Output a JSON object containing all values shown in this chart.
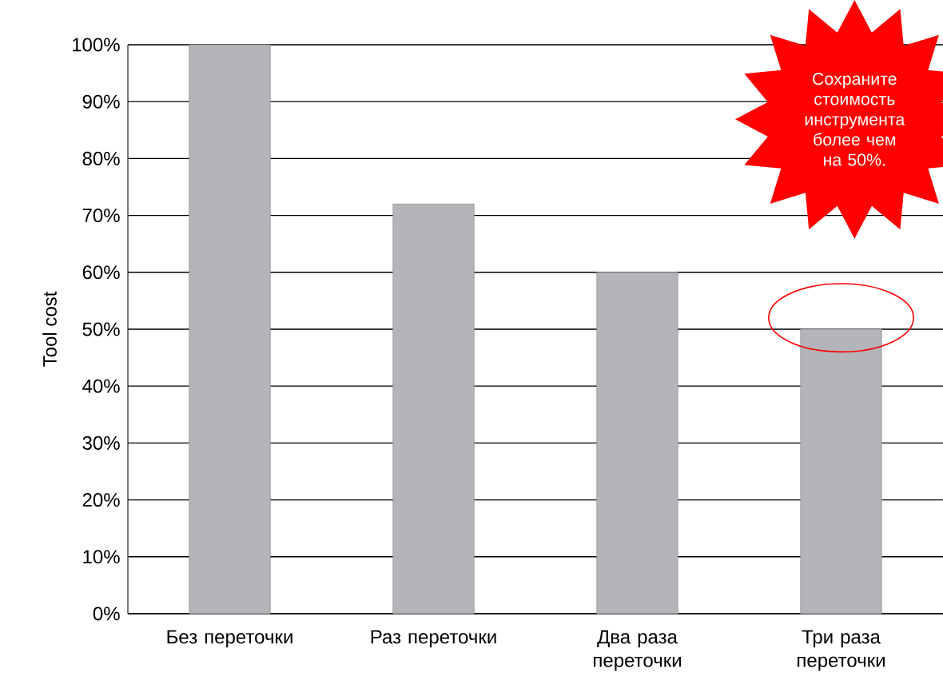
{
  "chart_data": {
    "type": "bar",
    "ylabel": "Tool cost",
    "categories": [
      "Без переточки",
      "Раз переточки",
      "Два раза переточки",
      "Три раза переточки"
    ],
    "values": [
      100,
      72,
      60,
      50
    ],
    "color": "#b3b5b8",
    "ylim": [
      0,
      100
    ],
    "yticks": [
      {
        "value": 0,
        "label": "0%"
      },
      {
        "value": 10,
        "label": "10%"
      },
      {
        "value": 20,
        "label": "20%"
      },
      {
        "value": 30,
        "label": "30%"
      },
      {
        "value": 40,
        "label": "40%"
      },
      {
        "value": 50,
        "label": "50%"
      },
      {
        "value": 60,
        "label": "60%"
      },
      {
        "value": 70,
        "label": "70%"
      },
      {
        "value": 80,
        "label": "80%"
      },
      {
        "value": 90,
        "label": "90%"
      },
      {
        "value": 100,
        "label": "100%"
      }
    ],
    "grid": "y",
    "annotations": [
      "Сохраните стоимость инструмента более чем на 50%."
    ]
  }
}
